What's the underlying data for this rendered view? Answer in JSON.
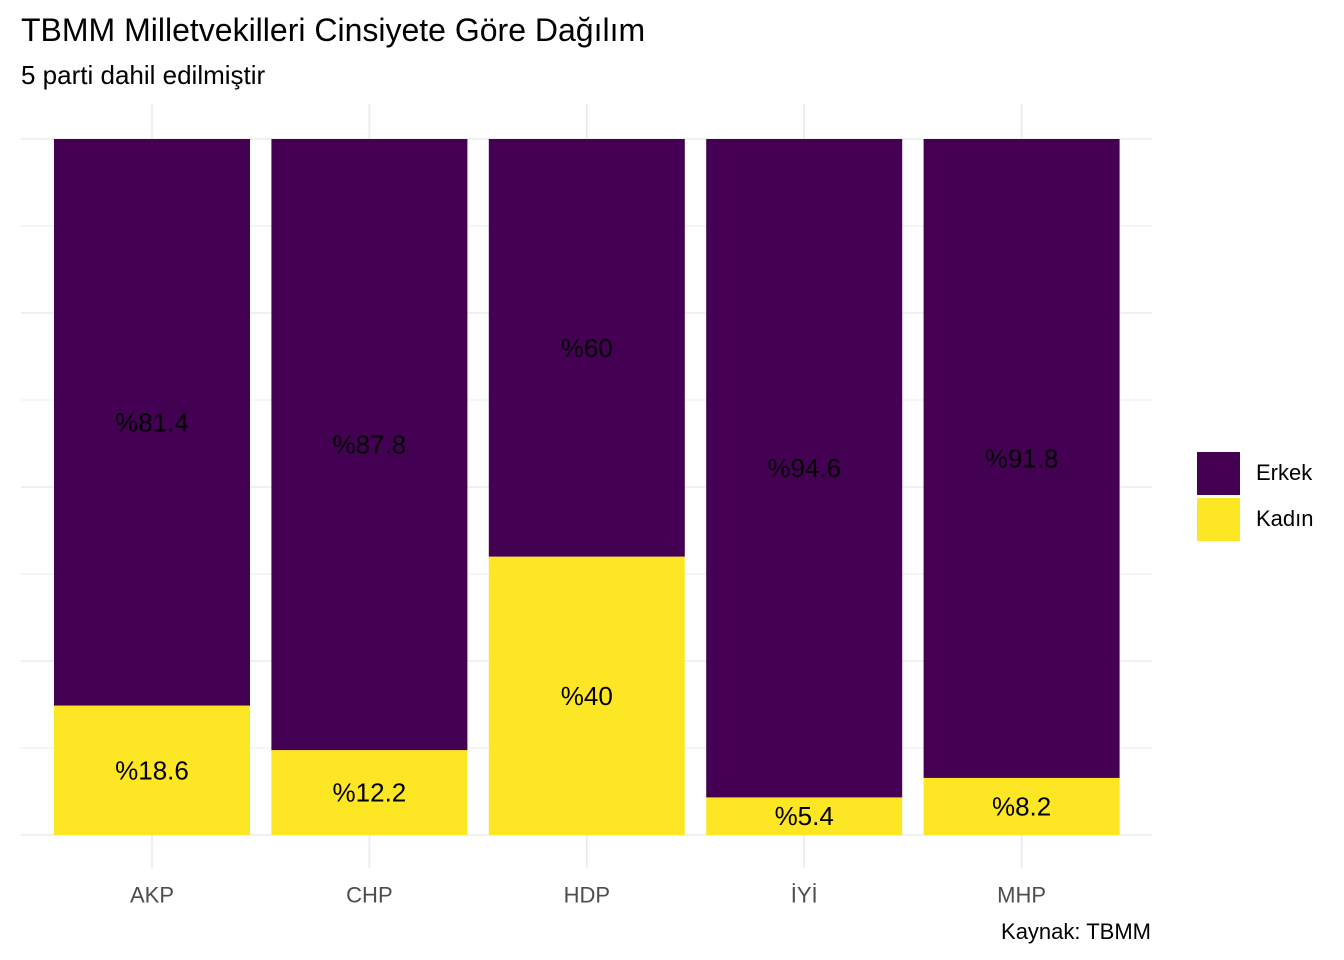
{
  "title": "TBMM Milletvekilleri Cinsiyete Göre Dağılım",
  "subtitle": "5 parti dahil edilmiştir",
  "caption": "Kaynak: TBMM",
  "colors": {
    "erkek": "#440154",
    "kadin": "#FDE725",
    "grid": "#EBEBEB",
    "tick_text": "#4D4D4D"
  },
  "chart_data": {
    "type": "bar",
    "stacked": "percent",
    "categories": [
      "AKP",
      "CHP",
      "HDP",
      "İYİ",
      "MHP"
    ],
    "series": [
      {
        "name": "Erkek",
        "values": [
          81.4,
          87.8,
          60,
          94.6,
          91.8
        ],
        "labels": [
          "%81.4",
          "%87.8",
          "%60",
          "%94.6",
          "%91.8"
        ]
      },
      {
        "name": "Kadın",
        "values": [
          18.6,
          12.2,
          40,
          5.4,
          8.2
        ],
        "labels": [
          "%18.6",
          "%12.2",
          "%40",
          "%5.4",
          "%8.2"
        ]
      }
    ],
    "ylim": [
      0,
      100
    ],
    "grid": true,
    "legend": {
      "position": "right",
      "entries": [
        "Erkek",
        "Kadın"
      ]
    }
  }
}
